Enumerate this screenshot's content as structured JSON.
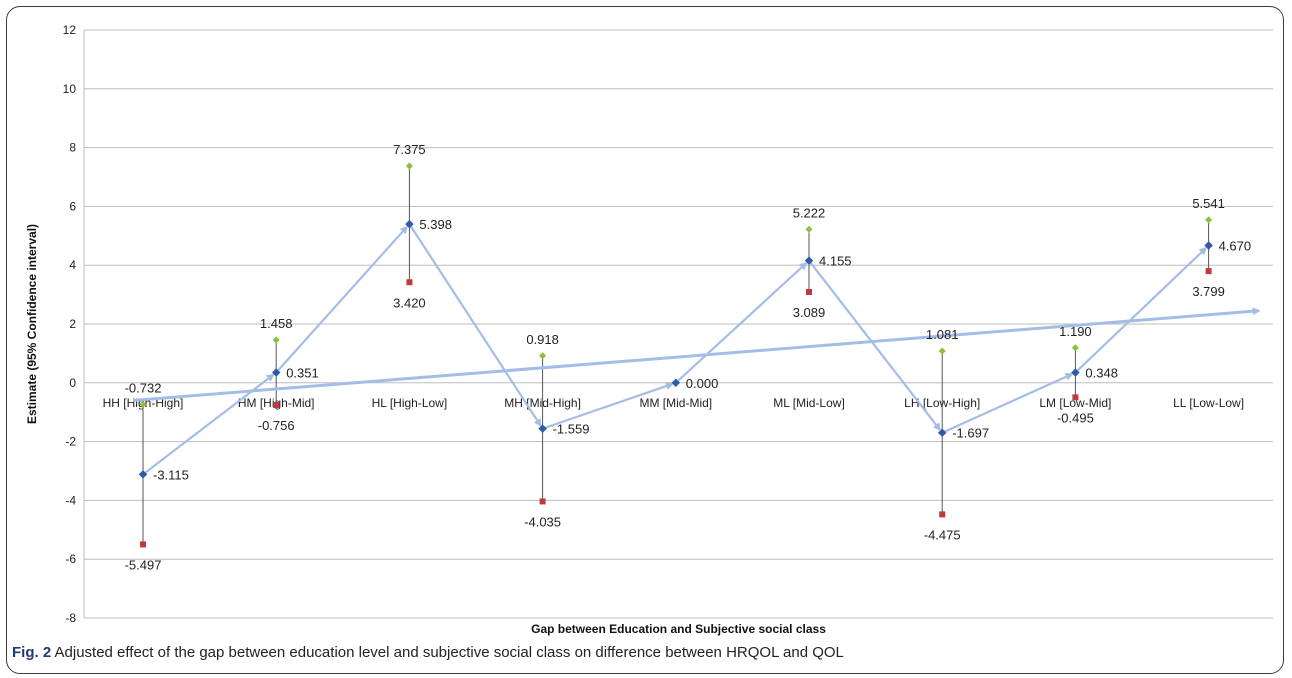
{
  "figure": {
    "caption_label": "Fig. 2",
    "caption_text": " Adjusted effect of the gap between education level and subjective social class on difference between HRQOL and QOL"
  },
  "chart_data": {
    "type": "line",
    "xlabel": "Gap between Education and Subjective social class",
    "ylabel": "Estimate (95% Confidence interval)",
    "ylim": [
      -8,
      12
    ],
    "yticks": [
      -8,
      -6,
      -4,
      -2,
      0,
      2,
      4,
      6,
      8,
      10,
      12
    ],
    "ytick_labels": [
      "-8",
      "-6",
      "-4",
      "-2",
      "0",
      "2",
      "4",
      "6",
      "8",
      "10",
      "12"
    ],
    "grid": "horizontal",
    "categories": [
      "HH [High-High]",
      "HM [High-Mid]",
      "HL [High-Low]",
      "MH  [Mid-High]",
      "MM  [Mid-Mid]",
      "ML [Mid-Low]",
      "LH [Low-High]",
      "LM  [Low-Mid]",
      "LL [Low-Low]"
    ],
    "series": [
      {
        "role": "estimate",
        "values": [
          -3.115,
          0.351,
          5.398,
          -1.559,
          0.0,
          4.155,
          -1.697,
          0.348,
          4.67
        ],
        "labels": [
          "-3.115",
          "0.351",
          "5.398",
          "-1.559",
          "0.000",
          "4.155",
          "-1.697",
          "0.348",
          "4.670"
        ],
        "color": "#2e5aa8"
      },
      {
        "role": "upper",
        "values": [
          -0.732,
          1.458,
          7.375,
          0.918,
          null,
          5.222,
          1.081,
          1.19,
          5.541
        ],
        "labels": [
          "-0.732",
          "1.458",
          "7.375",
          "0.918",
          "",
          "5.222",
          "1.081",
          "1.190",
          "5.541"
        ],
        "color": "#8fbf3f"
      },
      {
        "role": "lower",
        "values": [
          -5.497,
          -0.756,
          3.42,
          -4.035,
          null,
          3.089,
          -4.475,
          -0.495,
          3.799
        ],
        "labels": [
          "-5.497",
          "-0.756",
          "3.420",
          "-4.035",
          "",
          "3.089",
          "-4.475",
          "-0.495",
          "3.799"
        ],
        "color": "#c0393b"
      }
    ],
    "trend_line": {
      "from": -0.6,
      "to": 2.45,
      "color": "#a4bde6"
    },
    "connector_color": "#a4bde6",
    "axis_color": "#bdbdbd"
  }
}
